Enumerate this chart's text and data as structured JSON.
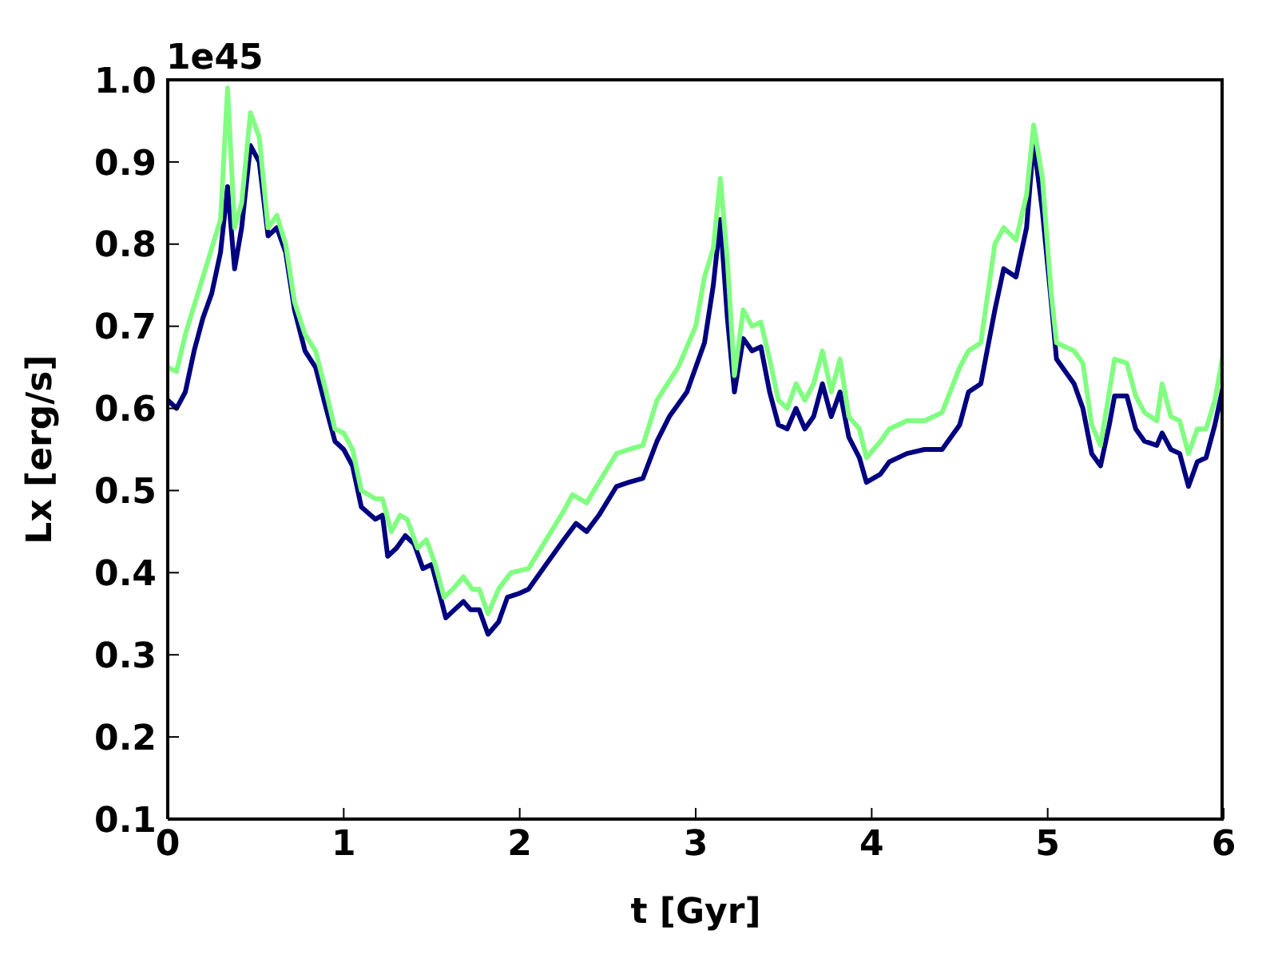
{
  "chart_data": {
    "type": "line",
    "xlabel": "t [Gyr]",
    "ylabel": "Lx [erg/s]",
    "annotations": [
      "1e45"
    ],
    "xlim": [
      0,
      6
    ],
    "xticks": [
      0,
      1,
      2,
      3,
      4,
      5,
      6
    ],
    "ylim": [
      0.1,
      1.0
    ],
    "yticks": [
      0.1,
      0.2,
      0.3,
      0.4,
      0.5,
      0.6,
      0.7,
      0.8,
      0.9,
      {
        "value": 1.0,
        "label": "1.0"
      }
    ],
    "grid": false,
    "legend": false,
    "marker": "none",
    "line_style": "solid",
    "series": [
      {
        "color": "#000080",
        "x": [
          0,
          0.05,
          0.1,
          0.15,
          0.2,
          0.25,
          0.3,
          0.34,
          0.38,
          0.42,
          0.47,
          0.52,
          0.57,
          0.62,
          0.67,
          0.72,
          0.78,
          0.84,
          0.9,
          0.95,
          1.0,
          1.05,
          1.1,
          1.18,
          1.22,
          1.25,
          1.3,
          1.35,
          1.4,
          1.45,
          1.5,
          1.55,
          1.58,
          1.63,
          1.68,
          1.72,
          1.77,
          1.82,
          1.88,
          1.93,
          2.0,
          2.05,
          2.15,
          2.25,
          2.32,
          2.38,
          2.45,
          2.55,
          2.62,
          2.7,
          2.78,
          2.85,
          2.95,
          3.05,
          3.1,
          3.14,
          3.18,
          3.22,
          3.27,
          3.32,
          3.37,
          3.42,
          3.47,
          3.52,
          3.57,
          3.62,
          3.67,
          3.72,
          3.77,
          3.82,
          3.87,
          3.93,
          3.97,
          4.05,
          4.1,
          4.2,
          4.3,
          4.4,
          4.5,
          4.55,
          4.62,
          4.7,
          4.75,
          4.82,
          4.88,
          4.92,
          4.97,
          5.02,
          5.05,
          5.15,
          5.2,
          5.25,
          5.3,
          5.35,
          5.38,
          5.45,
          5.5,
          5.55,
          5.62,
          5.65,
          5.7,
          5.75,
          5.8,
          5.85,
          5.9,
          5.95,
          6.0
        ],
        "values": [
          0.61,
          0.6,
          0.62,
          0.67,
          0.71,
          0.74,
          0.79,
          0.87,
          0.77,
          0.82,
          0.92,
          0.9,
          0.81,
          0.82,
          0.79,
          0.72,
          0.67,
          0.65,
          0.6,
          0.56,
          0.55,
          0.53,
          0.48,
          0.465,
          0.47,
          0.42,
          0.43,
          0.445,
          0.435,
          0.405,
          0.41,
          0.37,
          0.345,
          0.355,
          0.365,
          0.355,
          0.355,
          0.325,
          0.34,
          0.37,
          0.375,
          0.38,
          0.41,
          0.44,
          0.46,
          0.45,
          0.47,
          0.505,
          0.51,
          0.515,
          0.56,
          0.59,
          0.62,
          0.68,
          0.75,
          0.83,
          0.71,
          0.62,
          0.685,
          0.67,
          0.675,
          0.62,
          0.58,
          0.575,
          0.6,
          0.575,
          0.59,
          0.63,
          0.59,
          0.62,
          0.565,
          0.54,
          0.51,
          0.52,
          0.535,
          0.545,
          0.55,
          0.55,
          0.58,
          0.62,
          0.63,
          0.72,
          0.77,
          0.76,
          0.82,
          0.925,
          0.84,
          0.73,
          0.66,
          0.63,
          0.6,
          0.545,
          0.53,
          0.58,
          0.615,
          0.615,
          0.575,
          0.56,
          0.555,
          0.57,
          0.55,
          0.545,
          0.505,
          0.535,
          0.54,
          0.58,
          0.63
        ]
      },
      {
        "color": "#80ff80",
        "x": [
          0,
          0.05,
          0.1,
          0.2,
          0.3,
          0.34,
          0.38,
          0.42,
          0.47,
          0.52,
          0.57,
          0.62,
          0.67,
          0.72,
          0.78,
          0.84,
          0.9,
          0.95,
          1.0,
          1.05,
          1.1,
          1.18,
          1.22,
          1.27,
          1.32,
          1.36,
          1.42,
          1.47,
          1.52,
          1.57,
          1.62,
          1.68,
          1.73,
          1.77,
          1.82,
          1.88,
          1.95,
          2.05,
          2.15,
          2.25,
          2.3,
          2.38,
          2.45,
          2.55,
          2.62,
          2.7,
          2.78,
          2.9,
          3.0,
          3.05,
          3.1,
          3.14,
          3.18,
          3.22,
          3.27,
          3.32,
          3.37,
          3.42,
          3.47,
          3.52,
          3.57,
          3.62,
          3.67,
          3.72,
          3.77,
          3.82,
          3.87,
          3.93,
          3.97,
          4.05,
          4.1,
          4.2,
          4.3,
          4.4,
          4.5,
          4.55,
          4.62,
          4.7,
          4.75,
          4.82,
          4.88,
          4.92,
          4.97,
          5.02,
          5.05,
          5.15,
          5.2,
          5.25,
          5.3,
          5.35,
          5.38,
          5.45,
          5.5,
          5.55,
          5.62,
          5.65,
          5.7,
          5.75,
          5.8,
          5.85,
          5.9,
          5.95,
          6.0
        ],
        "values": [
          0.65,
          0.645,
          0.69,
          0.76,
          0.83,
          0.99,
          0.82,
          0.85,
          0.96,
          0.93,
          0.82,
          0.835,
          0.8,
          0.73,
          0.69,
          0.67,
          0.62,
          0.575,
          0.57,
          0.55,
          0.5,
          0.49,
          0.49,
          0.45,
          0.47,
          0.465,
          0.43,
          0.44,
          0.41,
          0.37,
          0.38,
          0.395,
          0.38,
          0.38,
          0.35,
          0.38,
          0.4,
          0.405,
          0.44,
          0.475,
          0.495,
          0.485,
          0.51,
          0.545,
          0.55,
          0.555,
          0.61,
          0.65,
          0.7,
          0.76,
          0.795,
          0.88,
          0.78,
          0.64,
          0.72,
          0.7,
          0.705,
          0.66,
          0.61,
          0.6,
          0.63,
          0.61,
          0.63,
          0.67,
          0.62,
          0.66,
          0.59,
          0.575,
          0.54,
          0.56,
          0.575,
          0.585,
          0.585,
          0.595,
          0.65,
          0.67,
          0.68,
          0.8,
          0.82,
          0.805,
          0.86,
          0.945,
          0.88,
          0.74,
          0.68,
          0.67,
          0.655,
          0.58,
          0.555,
          0.62,
          0.66,
          0.655,
          0.615,
          0.595,
          0.585,
          0.63,
          0.59,
          0.585,
          0.545,
          0.575,
          0.575,
          0.61,
          0.67
        ]
      }
    ]
  }
}
